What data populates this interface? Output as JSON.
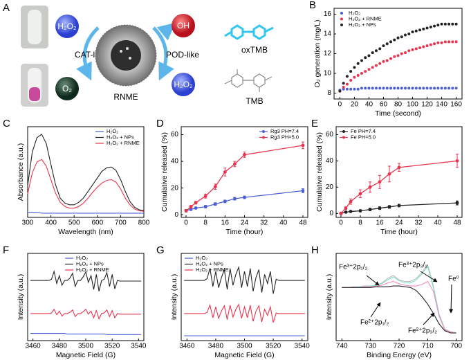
{
  "diagram": {
    "panel_label": "A",
    "reactant_top": "H₂O₂",
    "left_label": "CAT-like",
    "product_left": "O₂",
    "center_label": "RNME",
    "right_label": "POD-like",
    "product_right": "OH",
    "reactant_right": "H₂O₂",
    "oxidized": "oxTMB",
    "reduced": "TMB"
  },
  "chart_data": [
    {
      "type": "scatter",
      "panel_label": "B",
      "x_label": "Time (second)",
      "y_label": "O₂ generation (mg/L)",
      "xlim": [
        -8,
        168
      ],
      "ylim": [
        7.4,
        16.6
      ],
      "xticks": [
        0,
        20,
        40,
        60,
        80,
        100,
        120,
        140,
        160
      ],
      "yticks": [
        8,
        10,
        12,
        14,
        16
      ],
      "legend": "upper left",
      "x": [
        0,
        5,
        10,
        15,
        20,
        25,
        30,
        35,
        40,
        45,
        50,
        55,
        60,
        65,
        70,
        75,
        80,
        85,
        90,
        95,
        100,
        105,
        110,
        115,
        120,
        125,
        130,
        135,
        140,
        145,
        150,
        155,
        160
      ],
      "series": [
        {
          "name": "H₂O₂",
          "color": "#4a5fd6",
          "values": [
            8.3,
            8.4,
            8.4,
            8.4,
            8.4,
            8.4,
            8.5,
            8.5,
            8.5,
            8.5,
            8.5,
            8.5,
            8.5,
            8.5,
            8.5,
            8.5,
            8.5,
            8.5,
            8.5,
            8.5,
            8.5,
            8.5,
            8.5,
            8.5,
            8.5,
            8.5,
            8.5,
            8.5,
            8.5,
            8.5,
            8.5,
            8.5,
            8.5
          ]
        },
        {
          "name": "H₂O₂ + RNME",
          "color": "#e8344f",
          "values": [
            8.2,
            8.6,
            8.9,
            9.3,
            9.6,
            9.8,
            10.0,
            10.2,
            10.4,
            10.6,
            10.8,
            11.0,
            11.2,
            11.3,
            11.5,
            11.7,
            11.8,
            12.0,
            12.1,
            12.3,
            12.4,
            12.5,
            12.6,
            12.7,
            12.8,
            12.9,
            13.0,
            13.1,
            13.1,
            13.2,
            13.2,
            13.2,
            13.2
          ]
        },
        {
          "name": "H₂O₂ + NPs",
          "color": "#222222",
          "values": [
            8.2,
            9.0,
            9.7,
            10.2,
            10.6,
            11.0,
            11.3,
            11.6,
            11.8,
            12.1,
            12.3,
            12.5,
            12.8,
            13.0,
            13.2,
            13.4,
            13.6,
            13.7,
            13.9,
            14.0,
            14.2,
            14.3,
            14.4,
            14.5,
            14.6,
            14.7,
            14.8,
            14.9,
            15.0,
            15.0,
            15.0,
            15.0,
            15.0
          ]
        }
      ]
    },
    {
      "type": "line",
      "panel_label": "C",
      "x_label": "Wavelength (nm)",
      "y_label": "Absorbance (a.u.)",
      "xlim": [
        300,
        800
      ],
      "ylim": [
        -0.03,
        1.05
      ],
      "xticks": [
        300,
        400,
        500,
        600,
        700,
        800
      ],
      "legend": "upper right",
      "x": [
        300,
        320,
        340,
        360,
        380,
        400,
        420,
        440,
        460,
        480,
        500,
        520,
        540,
        560,
        580,
        600,
        620,
        640,
        660,
        680,
        700,
        720,
        740,
        760,
        780,
        800
      ],
      "series": [
        {
          "name": "H₂O₂",
          "color": "#4a5fd6",
          "values": [
            0.03,
            0.03,
            0.03,
            0.02,
            0.02,
            0.02,
            0.02,
            0.02,
            0.02,
            0.02,
            0.02,
            0.02,
            0.02,
            0.02,
            0.02,
            0.02,
            0.02,
            0.02,
            0.02,
            0.02,
            0.02,
            0.02,
            0.02,
            0.02,
            0.02,
            0.02
          ]
        },
        {
          "name": "H₂O₂ + NPs",
          "color": "#222222",
          "values": [
            0.35,
            0.75,
            0.92,
            0.96,
            0.85,
            0.6,
            0.36,
            0.2,
            0.14,
            0.12,
            0.12,
            0.15,
            0.2,
            0.28,
            0.36,
            0.44,
            0.52,
            0.56,
            0.57,
            0.53,
            0.42,
            0.28,
            0.16,
            0.09,
            0.06,
            0.05
          ]
        },
        {
          "name": "H₂O₂ + RNME",
          "color": "#e8344f",
          "values": [
            0.25,
            0.5,
            0.63,
            0.66,
            0.58,
            0.42,
            0.26,
            0.15,
            0.1,
            0.08,
            0.08,
            0.1,
            0.14,
            0.2,
            0.27,
            0.33,
            0.38,
            0.41,
            0.42,
            0.39,
            0.31,
            0.2,
            0.12,
            0.07,
            0.05,
            0.04
          ]
        }
      ]
    },
    {
      "type": "errorbar",
      "panel_label": "D",
      "x_label": "Time (hour)",
      "y_label": "Cumulative released (%)",
      "xlim": [
        -2,
        50
      ],
      "ylim": [
        -2,
        66
      ],
      "xticks": [
        0,
        8,
        16,
        24,
        32,
        40,
        48
      ],
      "yticks": [
        0,
        20,
        40,
        60
      ],
      "legend": "upper right",
      "x": [
        0,
        2,
        4,
        8,
        12,
        16,
        20,
        24,
        48
      ],
      "series": [
        {
          "name": "Rg3 PH=7.4",
          "color": "#4a5fd6",
          "values": [
            3,
            4,
            5,
            6,
            8,
            10,
            12,
            13,
            18
          ],
          "errors": [
            0.5,
            0.5,
            0.8,
            1,
            1,
            1,
            1,
            1,
            1.5
          ]
        },
        {
          "name": "Rg3 PH=5.0",
          "color": "#e8344f",
          "values": [
            3,
            6,
            9,
            14,
            21,
            32,
            38,
            45,
            52
          ],
          "errors": [
            1,
            1,
            1,
            1.5,
            2,
            3,
            2,
            2,
            2.5
          ]
        }
      ]
    },
    {
      "type": "errorbar",
      "panel_label": "E",
      "x_label": "Time (hour)",
      "y_label": "Cumulative released (%)",
      "xlim": [
        -2,
        50
      ],
      "ylim": [
        -3,
        66
      ],
      "xticks": [
        0,
        8,
        16,
        24,
        32,
        40,
        48
      ],
      "yticks": [
        0,
        20,
        40,
        60
      ],
      "legend": "upper left",
      "x": [
        0,
        2,
        4,
        8,
        12,
        16,
        20,
        24,
        48
      ],
      "series": [
        {
          "name": "Fe PH=7.4",
          "color": "#222222",
          "values": [
            0,
            1,
            1.5,
            2,
            3,
            4,
            5,
            6,
            8
          ],
          "errors": [
            0.5,
            0.5,
            0.5,
            0.8,
            1,
            1,
            1,
            1,
            1.5
          ]
        },
        {
          "name": "Fe PH=5.0",
          "color": "#e8344f",
          "values": [
            0,
            4,
            9,
            15,
            20,
            24,
            30,
            35,
            40
          ],
          "errors": [
            1,
            1,
            2,
            3,
            4,
            5,
            6,
            3,
            5
          ]
        }
      ]
    },
    {
      "type": "line",
      "panel_label": "F",
      "x_label": "Magnetic Field (G)",
      "y_label": "Intensity (a.u.)",
      "xlim": [
        3456,
        3544
      ],
      "ylim": [
        0,
        1.45
      ],
      "xticks": [
        3460,
        3480,
        3500,
        3520,
        3540
      ],
      "legend": "upper center",
      "x": [
        3458,
        3460,
        3462,
        3464,
        3466,
        3468,
        3470,
        3472,
        3474,
        3476,
        3478,
        3480,
        3482,
        3484,
        3486,
        3488,
        3490,
        3492,
        3494,
        3496,
        3498,
        3500,
        3502,
        3504,
        3506,
        3508,
        3510,
        3512,
        3514,
        3516,
        3518,
        3520,
        3522,
        3524,
        3526,
        3528,
        3530,
        3532,
        3534,
        3536,
        3538,
        3540,
        3542
      ],
      "series": [
        {
          "name": "H₂O₂",
          "color": "#4a5fd6",
          "values": [
            0.12,
            0.12,
            0.12,
            0.12,
            0.12,
            0.12,
            0.12,
            0.12,
            0.12,
            0.12,
            0.12,
            0.12,
            0.12,
            0.12,
            0.11,
            0.11,
            0.11,
            0.11,
            0.11,
            0.11,
            0.11,
            0.11,
            0.11,
            0.11,
            0.11,
            0.11,
            0.11,
            0.11,
            0.11,
            0.1,
            0.1,
            0.1,
            0.1,
            0.1,
            0.1,
            0.1,
            0.1,
            0.1,
            0.1,
            0.1,
            0.1,
            0.1,
            0.1
          ]
        },
        {
          "name": "H₂O₂ + NPs",
          "color": "#222222",
          "values": [
            1,
            1,
            1,
            1,
            1,
            1,
            1,
            1,
            1.02,
            1.15,
            0.95,
            1.08,
            0.92,
            1,
            1,
            1.04,
            1.12,
            0.9,
            1,
            1,
            1.06,
            1.14,
            0.97,
            1.08,
            0.85,
            1.1,
            0.82,
            1,
            1.02,
            1.13,
            0.9,
            1.1,
            0.86,
            1,
            0.99,
            0.99,
            0.99,
            0.99,
            0.99,
            0.99,
            0.99,
            0.99,
            0.99
          ]
        },
        {
          "name": "H₂O₂ + RNME",
          "color": "#e8344f",
          "values": [
            0.45,
            0.45,
            0.45,
            0.45,
            0.45,
            0.45,
            0.45,
            0.45,
            0.46,
            0.52,
            0.43,
            0.49,
            0.41,
            0.45,
            0.45,
            0.47,
            0.51,
            0.4,
            0.45,
            0.45,
            0.48,
            0.52,
            0.44,
            0.49,
            0.38,
            0.5,
            0.36,
            0.45,
            0.46,
            0.51,
            0.4,
            0.5,
            0.38,
            0.45,
            0.44,
            0.44,
            0.44,
            0.44,
            0.44,
            0.44,
            0.44,
            0.44,
            0.44
          ]
        }
      ]
    },
    {
      "type": "line",
      "panel_label": "G",
      "x_label": "Magnetic Field (G)",
      "y_label": "Intensity (a.u.)",
      "xlim": [
        3456,
        3544
      ],
      "ylim": [
        0,
        1.45
      ],
      "xticks": [
        3460,
        3480,
        3500,
        3520,
        3540
      ],
      "legend": "upper left",
      "x": [
        3458,
        3460,
        3462,
        3464,
        3466,
        3468,
        3470,
        3472,
        3474,
        3476,
        3478,
        3480,
        3482,
        3484,
        3486,
        3488,
        3490,
        3492,
        3494,
        3496,
        3498,
        3500,
        3502,
        3504,
        3506,
        3508,
        3510,
        3512,
        3514,
        3516,
        3518,
        3520,
        3522,
        3524,
        3526,
        3528,
        3530,
        3532,
        3534,
        3536,
        3538,
        3540,
        3542
      ],
      "series": [
        {
          "name": "H₂O₂",
          "color": "#4a5fd6",
          "values": [
            0.08,
            0.08,
            0.08,
            0.08,
            0.08,
            0.08,
            0.08,
            0.08,
            0.08,
            0.08,
            0.08,
            0.08,
            0.08,
            0.08,
            0.08,
            0.08,
            0.08,
            0.08,
            0.08,
            0.08,
            0.08,
            0.08,
            0.08,
            0.08,
            0.08,
            0.08,
            0.08,
            0.08,
            0.08,
            0.08,
            0.08,
            0.08,
            0.08,
            0.08,
            0.08,
            0.08,
            0.08,
            0.08,
            0.08,
            0.08,
            0.08,
            0.08,
            0.08
          ]
        },
        {
          "name": "H₂O₂ + NPs",
          "color": "#222222",
          "values": [
            1,
            1,
            1,
            1,
            1,
            1,
            1,
            1,
            1.03,
            1.2,
            0.9,
            1.15,
            0.88,
            1.05,
            1.18,
            0.85,
            1.2,
            0.92,
            1.1,
            1.22,
            0.88,
            1.15,
            0.9,
            1.2,
            0.82,
            1.05,
            1.18,
            0.8,
            1.1,
            0.95,
            1.15,
            0.78,
            1.02,
            1,
            1,
            1,
            1,
            1,
            1,
            1,
            1,
            1,
            1
          ]
        },
        {
          "name": "H₂O₂ + RNME",
          "color": "#e8344f",
          "values": [
            0.45,
            0.45,
            0.45,
            0.45,
            0.45,
            0.45,
            0.45,
            0.45,
            0.47,
            0.59,
            0.38,
            0.56,
            0.37,
            0.49,
            0.58,
            0.35,
            0.59,
            0.39,
            0.52,
            0.6,
            0.37,
            0.56,
            0.38,
            0.59,
            0.32,
            0.49,
            0.58,
            0.31,
            0.52,
            0.42,
            0.56,
            0.3,
            0.46,
            0.45,
            0.45,
            0.45,
            0.45,
            0.45,
            0.45,
            0.45,
            0.45,
            0.45,
            0.45
          ]
        }
      ]
    },
    {
      "type": "line",
      "panel_label": "H",
      "x_label": "Binding Energy (eV)",
      "y_label": "Intensity (a.u.)",
      "xlim": [
        742,
        698
      ],
      "ylim": [
        0,
        1.15
      ],
      "xticks": [
        740,
        730,
        720,
        710,
        700
      ],
      "annotations": [
        "Fe³⁺2p₁/₂",
        "Fe³⁺2p₃/₂",
        "Fe⁰",
        "Fe²⁺2p₁/₂",
        "Fe²⁺2p₃/₂"
      ],
      "x": [
        740,
        738,
        736,
        734,
        732,
        730,
        728,
        726,
        724,
        722,
        720,
        718,
        716,
        714,
        712,
        710,
        708,
        706,
        704,
        702,
        700
      ],
      "series": [
        {
          "color": "#b8b8b8",
          "values": [
            0.7,
            0.7,
            0.71,
            0.71,
            0.72,
            0.72,
            0.73,
            0.76,
            0.82,
            0.86,
            0.8,
            0.78,
            0.78,
            0.82,
            0.9,
            1.0,
            0.72,
            0.35,
            0.15,
            0.12,
            0.1
          ]
        },
        {
          "color": "#7fe0c8",
          "values": [
            0.7,
            0.7,
            0.7,
            0.71,
            0.71,
            0.72,
            0.73,
            0.75,
            0.8,
            0.84,
            0.79,
            0.76,
            0.76,
            0.8,
            0.88,
            0.98,
            0.7,
            0.34,
            0.14,
            0.11,
            0.1
          ]
        },
        {
          "color": "#f08cc0",
          "values": [
            0.7,
            0.7,
            0.7,
            0.7,
            0.71,
            0.71,
            0.72,
            0.73,
            0.76,
            0.78,
            0.75,
            0.73,
            0.72,
            0.72,
            0.74,
            0.78,
            0.65,
            0.32,
            0.14,
            0.11,
            0.1
          ]
        },
        {
          "color": "#222222",
          "values": [
            0.7,
            0.7,
            0.7,
            0.7,
            0.7,
            0.7,
            0.71,
            0.71,
            0.71,
            0.72,
            0.72,
            0.71,
            0.7,
            0.66,
            0.58,
            0.48,
            0.36,
            0.22,
            0.13,
            0.1,
            0.1
          ]
        }
      ]
    }
  ]
}
